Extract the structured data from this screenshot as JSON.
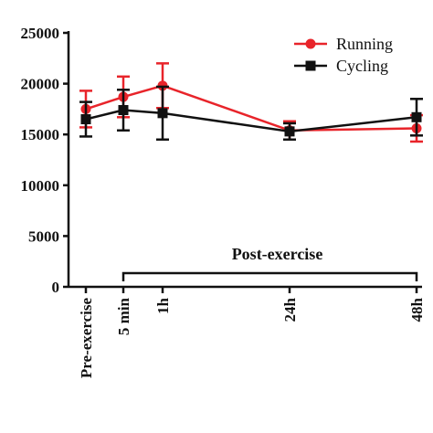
{
  "chart_data": {
    "type": "line",
    "x": [
      "Pre-exercise",
      "5 min",
      "1h",
      "24h",
      "48h"
    ],
    "x_positions_hours": [
      0,
      0.0833,
      1,
      24,
      48
    ],
    "ylim": [
      0,
      25000
    ],
    "y_ticks": [
      "0",
      "5000",
      "10000",
      "15000",
      "20000",
      "25000"
    ],
    "y_tick_values": [
      0,
      5000,
      10000,
      15000,
      20000,
      25000
    ],
    "series": [
      {
        "name": "Running",
        "color": "#e8242a",
        "marker": "circle",
        "values": [
          17500,
          18700,
          19800,
          15400,
          15600
        ],
        "error": [
          1800,
          2000,
          2200,
          900,
          1300
        ]
      },
      {
        "name": "Cycling",
        "color": "#111111",
        "marker": "square",
        "values": [
          16500,
          17400,
          17100,
          15300,
          16700
        ],
        "error": [
          1700,
          2000,
          2600,
          800,
          1800
        ]
      }
    ],
    "annotation": "Post-exercise",
    "legend_position": "top-right",
    "grid": false
  }
}
